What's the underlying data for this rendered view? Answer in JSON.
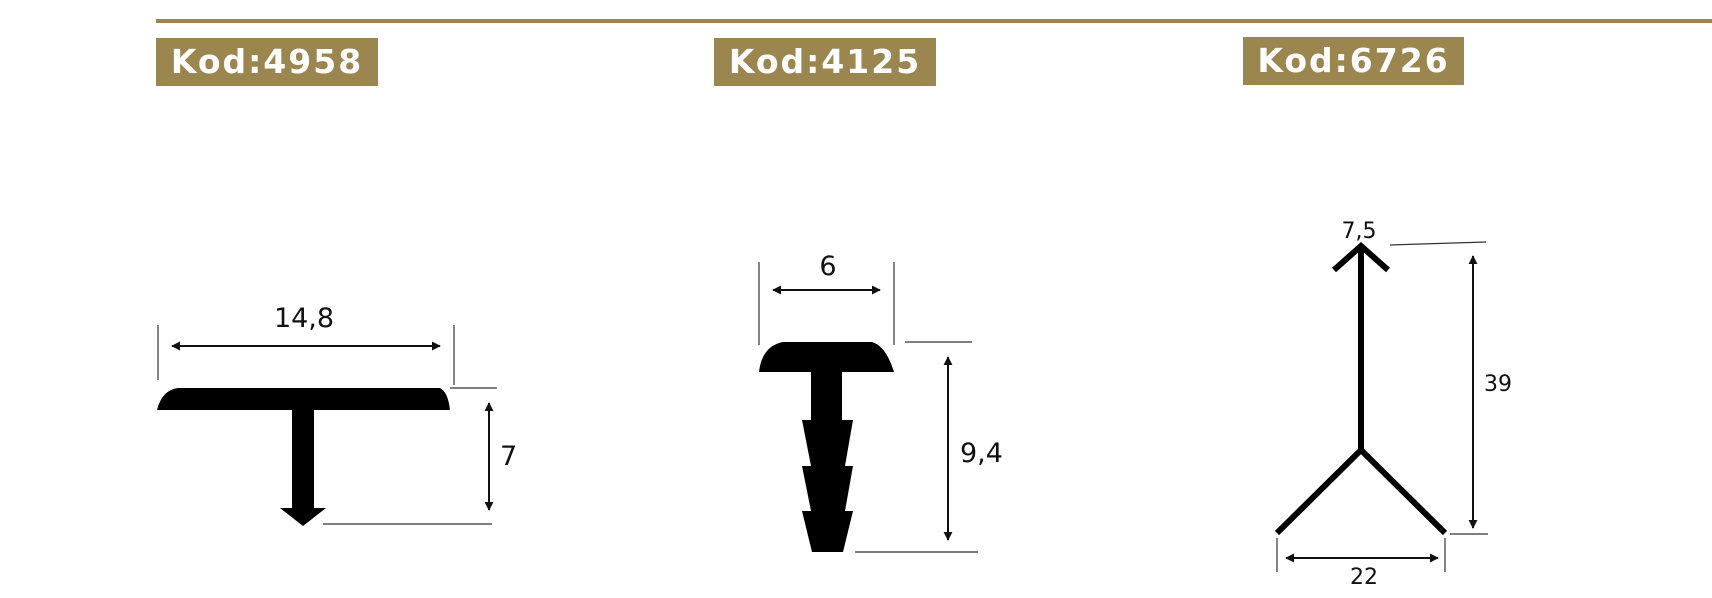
{
  "products": [
    {
      "code_label": "Kod:4958",
      "dimensions": {
        "width": "14,8",
        "height": "7"
      }
    },
    {
      "code_label": "Kod:4125",
      "dimensions": {
        "width": "6",
        "height": "9,4"
      }
    },
    {
      "code_label": "Kod:6726",
      "dimensions": {
        "top": "7,5",
        "height": "39",
        "width": "22"
      }
    }
  ],
  "colors": {
    "accent": "#9c8650",
    "badge_text": "#ffffff",
    "profile_fill": "#000000"
  }
}
